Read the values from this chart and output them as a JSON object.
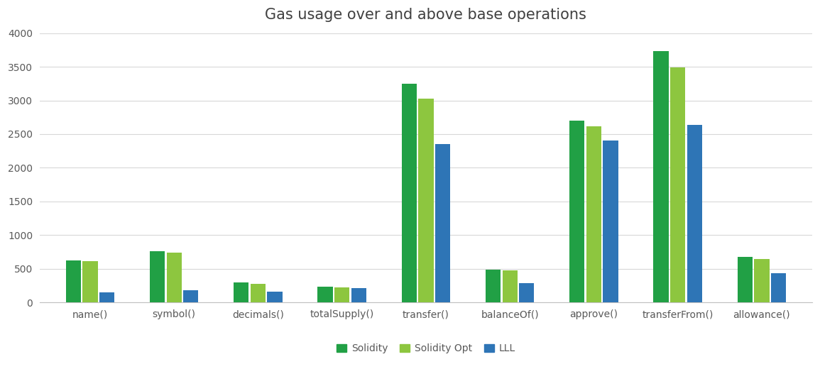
{
  "title": "Gas usage over and above base operations",
  "categories": [
    "name()",
    "symbol()",
    "decimals()",
    "totalSupply()",
    "transfer()",
    "balanceOf()",
    "approve()",
    "transferFrom()",
    "allowance()"
  ],
  "series": {
    "Solidity": [
      630,
      760,
      295,
      240,
      3250,
      490,
      2700,
      3730,
      680
    ],
    "Solidity Opt": [
      610,
      740,
      275,
      230,
      3030,
      480,
      2620,
      3490,
      650
    ],
    "LLL": [
      150,
      185,
      165,
      215,
      2350,
      285,
      2400,
      2640,
      435
    ]
  },
  "colors": {
    "Solidity": "#21a045",
    "Solidity Opt": "#8dc63f",
    "LLL": "#2e75b6"
  },
  "ylim": [
    0,
    4000
  ],
  "yticks": [
    0,
    500,
    1000,
    1500,
    2000,
    2500,
    3000,
    3500,
    4000
  ],
  "background_color": "#ffffff",
  "title_fontsize": 15,
  "tick_fontsize": 10,
  "legend_fontsize": 10,
  "bar_width": 0.18,
  "bar_gap": 0.02
}
